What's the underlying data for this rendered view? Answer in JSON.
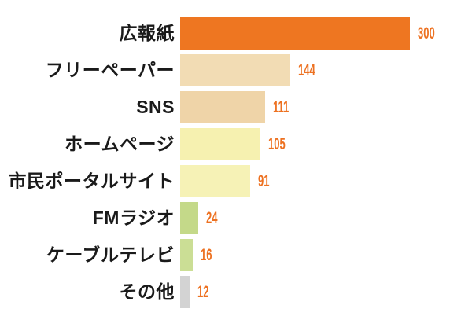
{
  "chart_data": {
    "type": "bar",
    "orientation": "horizontal",
    "title": "",
    "xlabel": "",
    "ylabel": "",
    "xlim": [
      0,
      300
    ],
    "grid": false,
    "legend": false,
    "value_labels_shown": true,
    "categories": [
      "広報紙",
      "フリーペーパー",
      "SNS",
      "ホームページ",
      "市民ポータルサイト",
      "FMラジオ",
      "ケーブルテレビ",
      "その他"
    ],
    "values": [
      300,
      144,
      111,
      105,
      91,
      24,
      16,
      12
    ],
    "bar_colors": [
      "#EE7621",
      "#F2DCB4",
      "#EFD4A8",
      "#F6F1B0",
      "#F6F2B6",
      "#C4D989",
      "#CBDE95",
      "#D3D3D3"
    ],
    "colors": {
      "category_label": "#1A1A1A",
      "value_label": "#ED7121",
      "background": "#FFFFFF"
    }
  }
}
